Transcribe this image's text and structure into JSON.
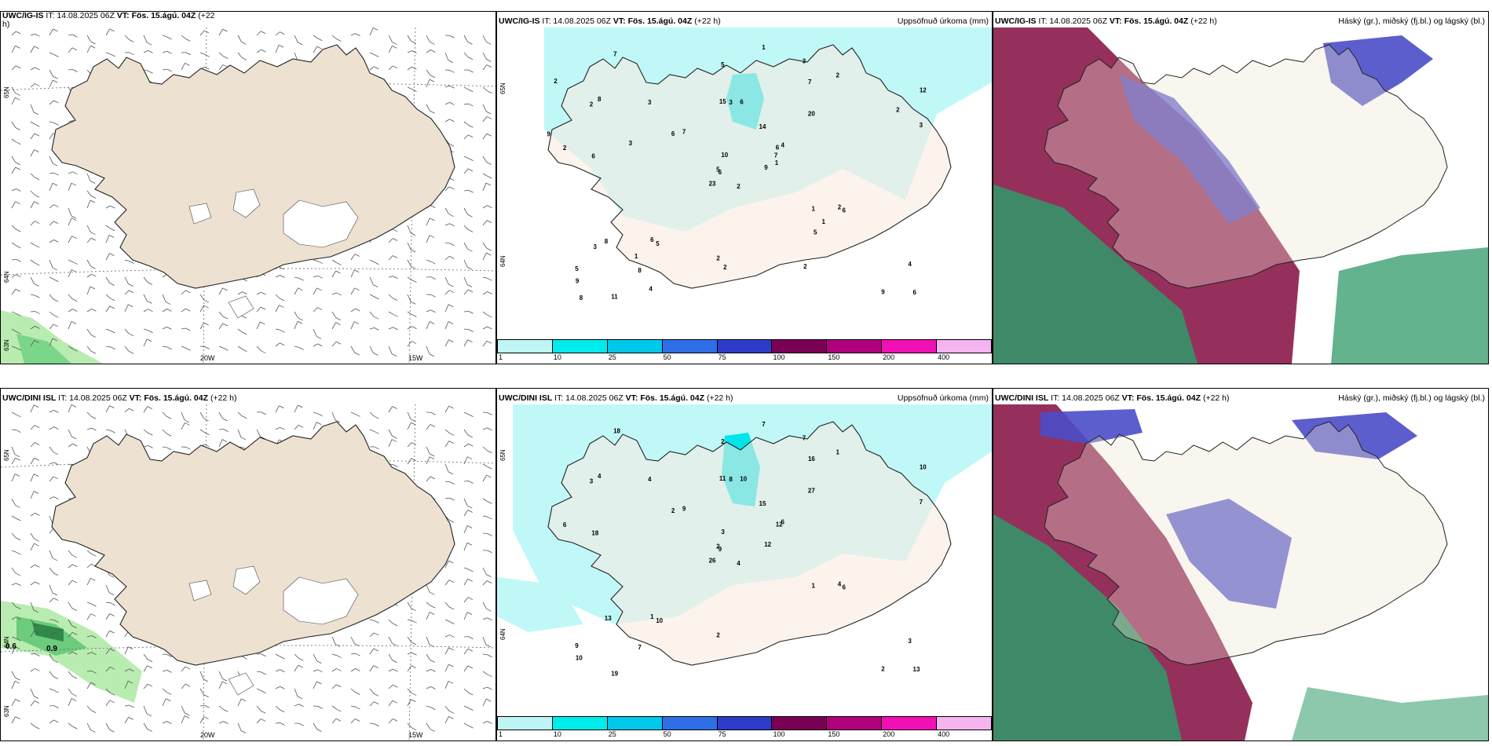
{
  "panels": {
    "top_wind": {
      "title_model": "UWC/IG-IS",
      "title_rest": " IT: 14.08.2025 06Z ",
      "title_vt": "VT: Fös. 15.ágú. 04Z",
      "title_tail": " (+22",
      "title_wrap": "h)",
      "lat_labels": [
        "65N",
        "64N",
        "63N"
      ],
      "lon_labels": [
        "20W",
        "15W"
      ]
    },
    "top_precip": {
      "title_model": "UWC/IG-IS",
      "title_rest": " IT: 14.08.2025 06Z ",
      "title_vt": "VT: Fös. 15.ágú. 04Z",
      "title_tail": " (+22 h)",
      "right_title": "Uppsöfnuð úrkoma (mm)",
      "lat_labels": [
        "65N",
        "64N"
      ]
    },
    "top_cloud": {
      "title_model": "UWC/IG-IS",
      "title_rest": " IT: 14.08.2025 06Z ",
      "title_vt": "VT: Fös. 15.ágú. 04Z",
      "title_tail": " (+22 h)",
      "right_title": "Háský (gr.), miðský (fj.bl.) og lágský (bl.)"
    },
    "bot_wind": {
      "title_model": "UWC/DINI ISL",
      "title_rest": " IT: 14.08.2025 06Z ",
      "title_vt": "VT: Fös. 15.ágú. 04Z",
      "title_tail": " (+22 h)",
      "lat_labels": [
        "65N",
        "64N",
        "63N"
      ],
      "lon_labels": [
        "20W",
        "15W"
      ],
      "values": [
        "0.6",
        "0.9"
      ]
    },
    "bot_precip": {
      "title_model": "UWC/DINI ISL",
      "title_rest": " IT: 14.08.2025 06Z ",
      "title_vt": "VT: Fös. 15.ágú. 04Z",
      "title_tail": " (+22 h)",
      "right_title": "Uppsöfnuð úrkoma (mm)",
      "lat_labels": [
        "65N",
        "64N"
      ]
    },
    "bot_cloud": {
      "title_model": "UWC/DINI ISL",
      "title_rest": " IT: 14.08.2025 06Z ",
      "title_vt": "VT: Fös. 15.ágú. 04Z",
      "title_tail": " (+22 h)",
      "right_title": "Háský (gr.), miðský (fj.bl.) og lágský (bl.)"
    }
  },
  "colorbar": {
    "ticks": [
      "1",
      "10",
      "25",
      "50",
      "75",
      "100",
      "150",
      "200",
      "400"
    ],
    "colors": [
      "#bff5f5",
      "#00ecec",
      "#00c8ea",
      "#2e6ee6",
      "#2d3cc8",
      "#7a0056",
      "#b0007e",
      "#f010b4",
      "#f5b4f0"
    ]
  },
  "precip_values_top": [
    "2",
    "2",
    "6",
    "5",
    "6",
    "5",
    "3",
    "6",
    "7",
    "9",
    "7",
    "6",
    "6",
    "12",
    "23",
    "20",
    "11",
    "15",
    "14",
    "8",
    "7",
    "9",
    "8",
    "3",
    "4",
    "6",
    "8",
    "5",
    "2",
    "1",
    "3",
    "5",
    "2",
    "10",
    "3",
    "2",
    "6",
    "9",
    "4",
    "2",
    "1",
    "6",
    "3",
    "5",
    "4",
    "9",
    "7",
    "8",
    "2",
    "1",
    "3",
    "2",
    "2",
    "1",
    "2",
    "1"
  ],
  "precip_values_bot": [
    "4",
    "3",
    "9",
    "9",
    "12",
    "10",
    "7",
    "10",
    "16",
    "12",
    "18",
    "13",
    "18",
    "10",
    "26",
    "27",
    "19",
    "11",
    "15",
    "13",
    "9",
    "10",
    "7",
    "8",
    "6",
    "6",
    "4",
    "2",
    "6",
    "1",
    "7",
    "2",
    "2",
    "3",
    "4",
    "1",
    "1",
    "2",
    "3",
    "4",
    "7",
    "2"
  ],
  "colors": {
    "land": "#ede1d1",
    "land_light": "#fbeadf",
    "precip_light": "#c0f8f8",
    "precip_mid": "#00e4ec",
    "cloud_high": "#2f9a6a",
    "cloud_mid": "#4a4cc8",
    "cloud_low": "#8a1a4a"
  }
}
